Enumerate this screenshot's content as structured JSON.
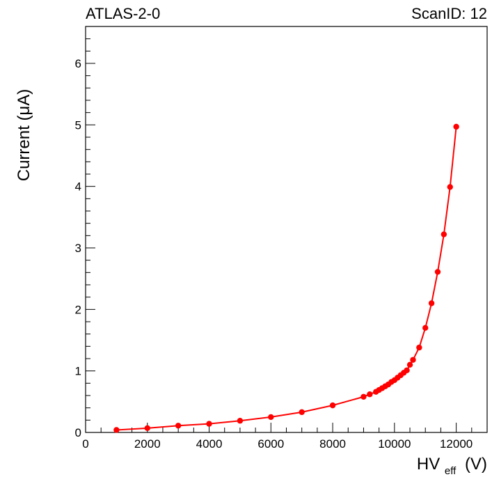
{
  "chart_data": {
    "type": "line",
    "title_left": "ATLAS-2-0",
    "title_right": "ScanID: 12",
    "xlabel": {
      "main": "HV",
      "sub": "eff",
      "unit": "(V)"
    },
    "ylabel": "Current (μA)",
    "xlim": [
      0,
      13000
    ],
    "ylim": [
      0,
      6.6
    ],
    "x_major_ticks": [
      0,
      2000,
      4000,
      6000,
      8000,
      10000,
      12000
    ],
    "x_minor_step": 500,
    "y_major_ticks": [
      0,
      1,
      2,
      3,
      4,
      5,
      6
    ],
    "y_minor_step": 0.2,
    "grid": false,
    "series": [
      {
        "color": "#ff0000",
        "marker": "circle",
        "x": [
          1000,
          2000,
          3000,
          4000,
          5000,
          6000,
          7000,
          8000,
          9000,
          9200,
          9400,
          9500,
          9600,
          9700,
          9800,
          9900,
          10000,
          10100,
          10200,
          10300,
          10400,
          10500,
          10600,
          10800,
          11000,
          11200,
          11400,
          11600,
          11800,
          12000
        ],
        "y": [
          0.04,
          0.07,
          0.11,
          0.14,
          0.19,
          0.25,
          0.33,
          0.44,
          0.58,
          0.62,
          0.66,
          0.69,
          0.72,
          0.75,
          0.78,
          0.82,
          0.85,
          0.89,
          0.93,
          0.97,
          1.01,
          1.1,
          1.18,
          1.38,
          1.7,
          2.1,
          2.61,
          3.22,
          3.99,
          4.97
        ]
      }
    ]
  }
}
